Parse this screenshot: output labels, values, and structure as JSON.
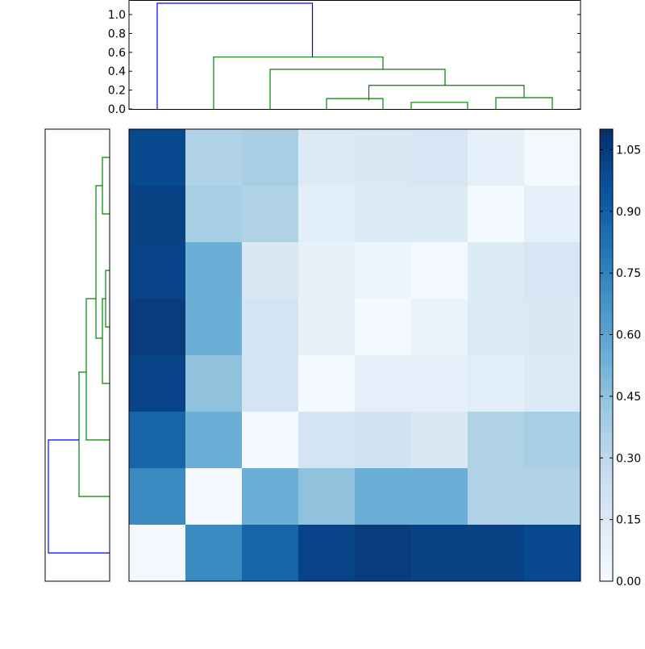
{
  "chart_data": [
    {
      "type": "dendrogram",
      "orientation": "top",
      "ylim": [
        0.0,
        1.15
      ],
      "yticks": [
        "0.0",
        "0.2",
        "0.4",
        "0.6",
        "0.8",
        "1.0"
      ],
      "link_colors": {
        "root": "#0000ff",
        "cluster": "#008000"
      }
    },
    {
      "type": "dendrogram",
      "orientation": "left",
      "link_colors": {
        "root": "#0000ff",
        "cluster": "#008000"
      }
    },
    {
      "type": "heatmap",
      "colormap": "Blues",
      "vmin": 0.0,
      "vmax": 1.1,
      "rows": 8,
      "cols": 8,
      "values": [
        [
          1.0,
          0.35,
          0.38,
          0.15,
          0.16,
          0.18,
          0.1,
          0.03
        ],
        [
          1.03,
          0.38,
          0.35,
          0.12,
          0.15,
          0.15,
          0.02,
          0.1
        ],
        [
          1.02,
          0.55,
          0.16,
          0.09,
          0.06,
          0.02,
          0.15,
          0.18
        ],
        [
          1.05,
          0.55,
          0.2,
          0.09,
          0.02,
          0.07,
          0.15,
          0.16
        ],
        [
          1.02,
          0.45,
          0.2,
          0.02,
          0.1,
          0.1,
          0.12,
          0.15
        ],
        [
          0.88,
          0.55,
          0.02,
          0.2,
          0.21,
          0.16,
          0.35,
          0.38
        ],
        [
          0.72,
          0.02,
          0.55,
          0.45,
          0.55,
          0.55,
          0.35,
          0.35
        ],
        [
          0.03,
          0.72,
          0.88,
          1.02,
          1.05,
          1.03,
          1.03,
          1.0
        ]
      ],
      "colorbar_ticks": [
        "0.00",
        "0.15",
        "0.30",
        "0.45",
        "0.60",
        "0.75",
        "0.90",
        "1.05"
      ]
    }
  ]
}
